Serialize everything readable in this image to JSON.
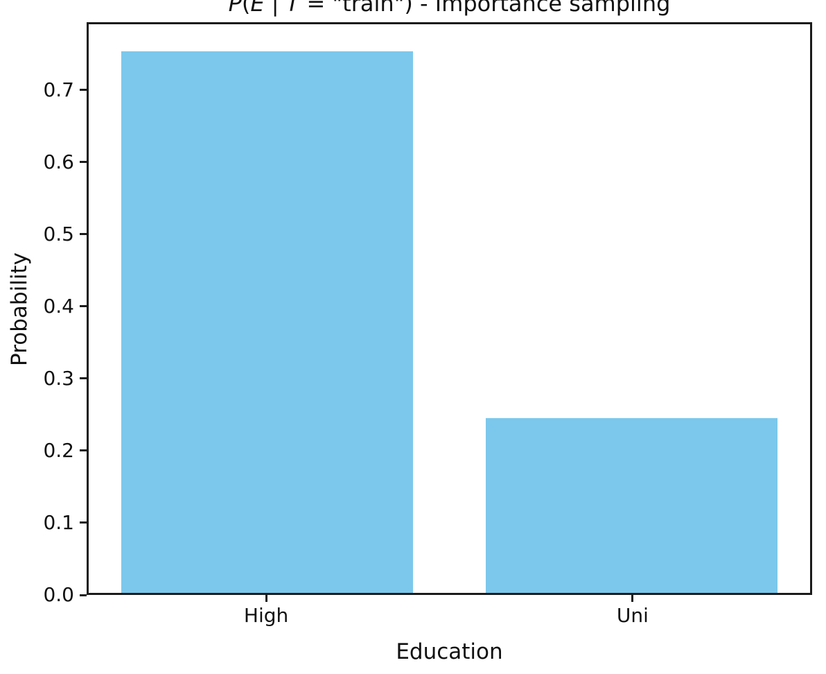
{
  "figure": {
    "background_color": "#ffffff",
    "axis_color": "#1b1b1b",
    "text_color": "#111111"
  },
  "title": {
    "text": "P(E | T = \"train\") - Importance sampling",
    "segments": [
      {
        "text": "P",
        "italic": true
      },
      {
        "text": "(",
        "italic": false
      },
      {
        "text": "E",
        "italic": true
      },
      {
        "text": " | ",
        "italic": false
      },
      {
        "text": "T",
        "italic": true
      },
      {
        "text": " = \"train\") - Importance sampling",
        "italic": false
      }
    ]
  },
  "chart_data": {
    "type": "bar",
    "title": "P(E | T = \"train\") - Importance sampling",
    "categories": [
      "High",
      "Uni"
    ],
    "values": [
      0.756,
      0.244
    ],
    "x": [
      0,
      1
    ],
    "bar_width": 0.8,
    "xlim": [
      -0.49,
      1.49
    ],
    "ylim": [
      0,
      0.794
    ],
    "yticks": [
      0.0,
      0.1,
      0.2,
      0.3,
      0.4,
      0.5,
      0.6,
      0.7
    ],
    "ytick_labels": [
      "0.0",
      "0.1",
      "0.2",
      "0.3",
      "0.4",
      "0.5",
      "0.6",
      "0.7"
    ],
    "xlabel": "Education",
    "ylabel": "Probability",
    "bar_color": "#7bc8ec",
    "grid": false,
    "legend_position": "none"
  }
}
